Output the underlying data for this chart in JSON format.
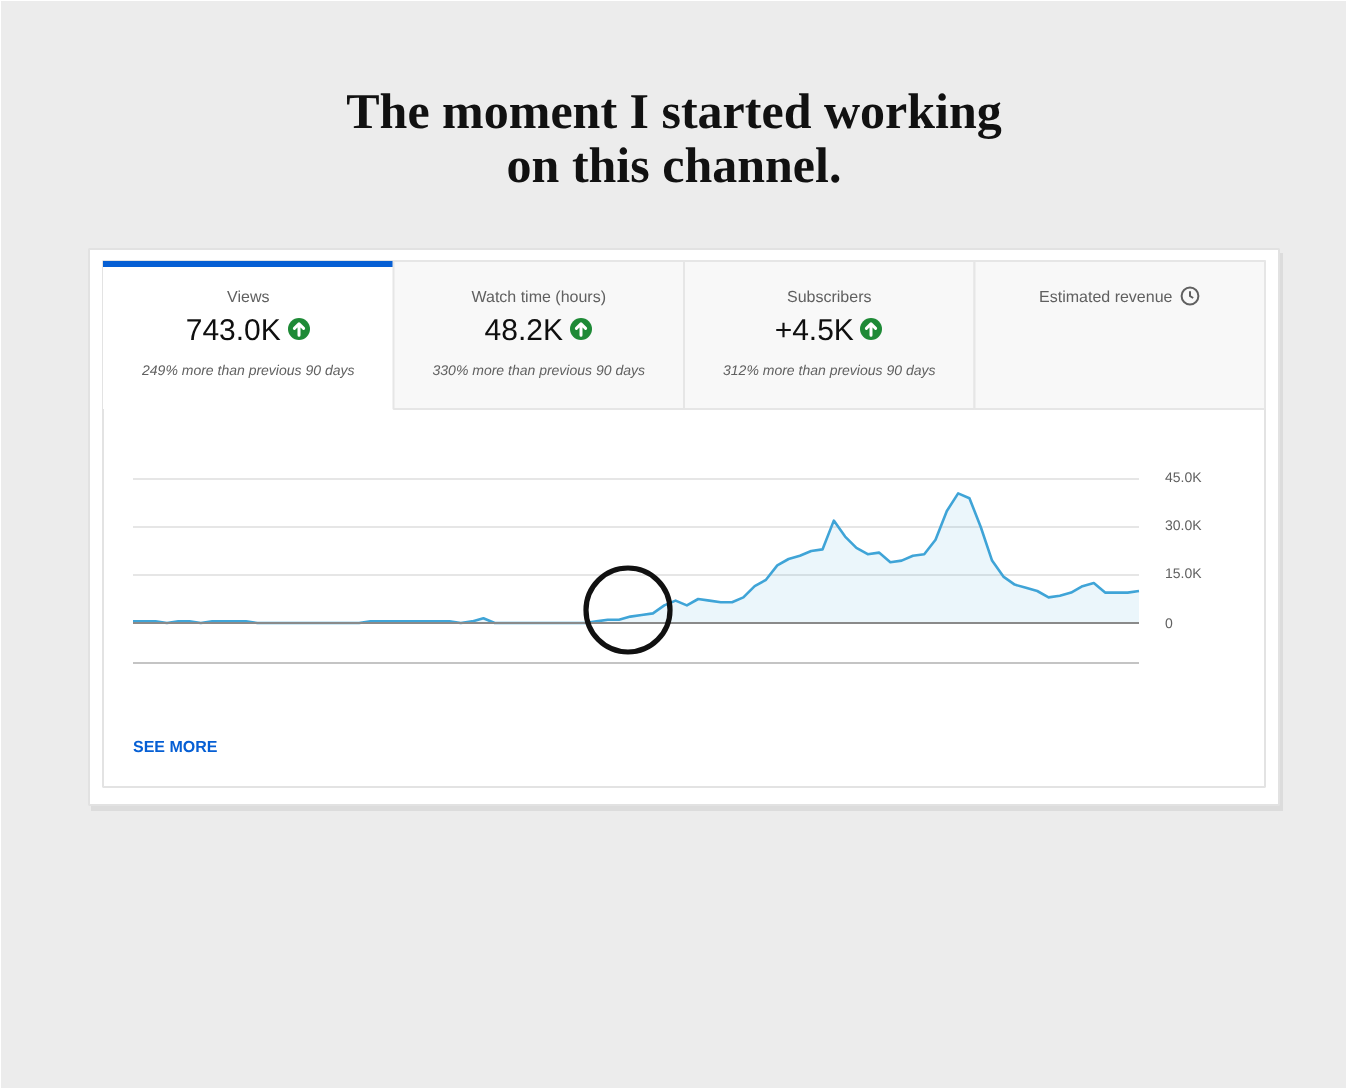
{
  "chart_data": [
    {
      "type": "other",
      "title": "The moment I started working on this channel.",
      "categories": [
        "Views",
        "Watch time (hours)",
        "Subscribers",
        "Estimated revenue"
      ],
      "value_labels": [
        "743.0K",
        "48.2K",
        "+4.5K",
        null
      ],
      "annotations": [
        "249% more than previous 90 days",
        "330% more than previous 90 days",
        "312% more than previous 90 days"
      ]
    },
    {
      "type": "area",
      "categories": [
        null,
        null,
        null,
        null,
        null,
        null,
        null,
        null,
        null,
        null,
        null,
        null,
        null,
        null,
        null,
        null,
        null,
        null,
        null,
        null,
        null,
        null,
        null,
        null,
        null,
        null,
        null,
        null,
        null,
        null,
        null,
        null,
        null,
        null,
        null,
        null,
        null,
        null,
        null,
        null,
        null,
        null,
        null,
        null,
        null,
        null,
        null,
        null,
        null,
        null,
        null,
        null,
        null,
        null,
        null,
        null,
        null,
        null,
        null,
        null,
        null,
        null,
        null,
        null,
        null,
        null,
        null,
        null,
        null,
        null,
        null,
        null,
        null,
        null,
        null,
        null,
        null,
        null,
        null,
        null,
        null,
        null,
        null,
        null,
        null,
        null,
        null,
        null,
        null,
        null
      ],
      "series": [
        {
          "color": "#3fa4d7",
          "values": [
            500,
            500,
            500,
            0,
            500,
            500,
            0,
            500,
            500,
            500,
            500,
            0,
            0,
            0,
            0,
            0,
            0,
            0,
            0,
            0,
            0,
            500,
            500,
            500,
            500,
            500,
            500,
            500,
            500,
            0,
            500,
            1500,
            0,
            0,
            0,
            0,
            0,
            0,
            0,
            0,
            0,
            500,
            1000,
            1000,
            2000,
            2500,
            3000,
            5500,
            7000,
            5500,
            7500,
            7000,
            6500,
            6500,
            8000,
            11500,
            13500,
            18000,
            20000,
            21000,
            22500,
            23000,
            32000,
            27000,
            23500,
            21500,
            22000,
            19000,
            19500,
            21000,
            21500,
            26000,
            35000,
            40500,
            39000,
            30000,
            19500,
            14500,
            12000,
            11000,
            10000,
            8000,
            8500,
            9500,
            11500,
            12500,
            9500,
            9500,
            9500,
            10000
          ]
        }
      ],
      "ylim": [
        -12500,
        45000
      ],
      "yticks": [
        0,
        {
          "value": 15000,
          "label": "15.0K"
        },
        {
          "value": 30000,
          "label": "30.0K"
        },
        {
          "value": 45000,
          "label": "45.0K"
        }
      ],
      "grid": "y",
      "ref_lines": [
        {
          "axis": "y",
          "value": 0,
          "color": "#8a8a8a"
        }
      ],
      "annotations": [
        "SEE MORE"
      ]
    }
  ]
}
